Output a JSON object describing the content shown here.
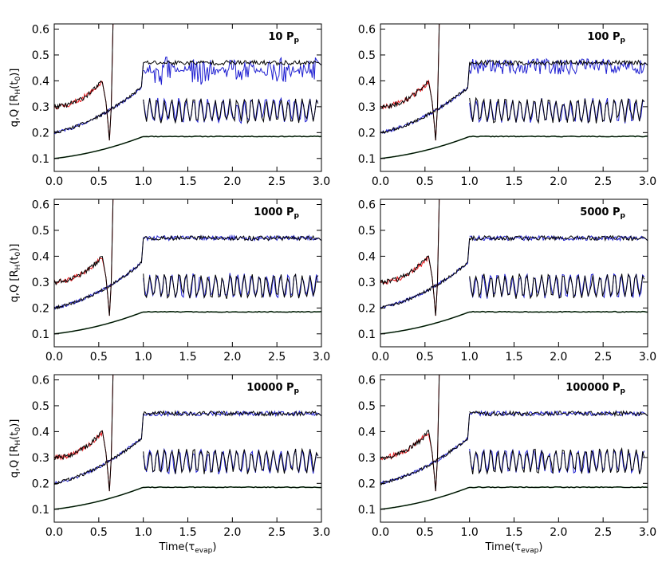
{
  "chart_data": {
    "type": "line",
    "ylabel": "q,Q  [R",
    "ylabel_sub": "H",
    "ylabel_mid": "(t",
    "ylabel_sub2": "0",
    "ylabel_end": ")]",
    "xlabel": "Time(τ",
    "xlabel_sub": "evap",
    "xlabel_end": ")",
    "xlim": [
      0,
      3.0
    ],
    "ylim": [
      0.05,
      0.62
    ],
    "xticks": [
      "0.0",
      "0.5",
      "1.0",
      "1.5",
      "2.0",
      "2.5",
      "3.0"
    ],
    "yticks": [
      "0.1",
      "0.2",
      "0.3",
      "0.4",
      "0.5",
      "0.6"
    ],
    "colors": {
      "black": "#000000",
      "red": "#e8181c",
      "blue": "#1f1fd1",
      "green": "#1f6b2a"
    },
    "panels": [
      {
        "label": "10 P",
        "label_sub": "p",
        "seed": 11,
        "blue_mode": "envelope"
      },
      {
        "label": "100 P",
        "label_sub": "p",
        "seed": 22,
        "blue_mode": "noisy"
      },
      {
        "label": "1000 P",
        "label_sub": "p",
        "seed": 33,
        "blue_mode": "close"
      },
      {
        "label": "5000 P",
        "label_sub": "p",
        "seed": 44,
        "blue_mode": "close"
      },
      {
        "label": "10000 P",
        "label_sub": "p",
        "seed": 55,
        "blue_mode": "close"
      },
      {
        "label": "100000 P",
        "label_sub": "p",
        "seed": 66,
        "blue_mode": "close"
      }
    ],
    "series_trend": {
      "primary_start": 0.2,
      "primary_at_1": 0.38,
      "secondary_start": 0.3,
      "secondary_at_0_6": 0.42,
      "tertiary_start": 0.1,
      "tertiary_at_1": 0.185,
      "post_upper": 0.47,
      "post_lower_band": [
        0.24,
        0.33
      ],
      "post_floor": 0.185
    }
  }
}
